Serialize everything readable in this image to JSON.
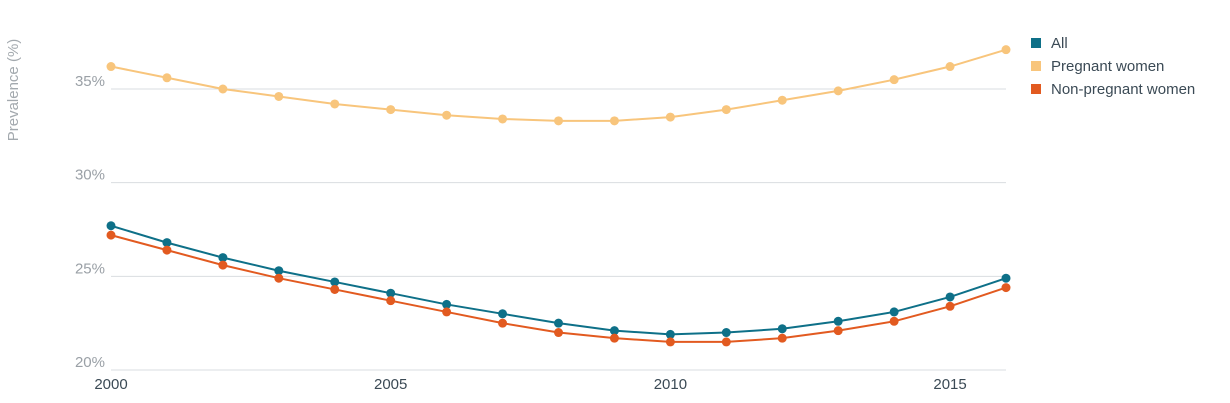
{
  "chart_data": {
    "type": "line",
    "ylabel": "Prevalence (%)",
    "x": [
      2000,
      2001,
      2002,
      2003,
      2004,
      2005,
      2006,
      2007,
      2008,
      2009,
      2010,
      2011,
      2012,
      2013,
      2014,
      2015,
      2016
    ],
    "x_ticks": [
      "2000",
      "2005",
      "2010",
      "2015"
    ],
    "x_tick_values": [
      2000,
      2005,
      2010,
      2015
    ],
    "y_ticks": [
      "20%",
      "25%",
      "30%",
      "35%"
    ],
    "y_tick_values": [
      20,
      25,
      30,
      35
    ],
    "ylim": [
      20,
      38
    ],
    "xlim": [
      2000,
      2016
    ],
    "grid": true,
    "legend_position": "top-right",
    "series": [
      {
        "name": "All",
        "color": "#0e7088",
        "values": [
          27.7,
          26.8,
          26.0,
          25.3,
          24.7,
          24.1,
          23.5,
          23.0,
          22.5,
          22.1,
          21.9,
          22.0,
          22.2,
          22.6,
          23.1,
          23.9,
          24.9
        ]
      },
      {
        "name": "Pregnant women",
        "color": "#f8c57c",
        "values": [
          36.2,
          35.6,
          35.0,
          34.6,
          34.2,
          33.9,
          33.6,
          33.4,
          33.3,
          33.3,
          33.5,
          33.9,
          34.4,
          34.9,
          35.5,
          36.2,
          37.1
        ]
      },
      {
        "name": "Non-pregnant women",
        "color": "#e25a20",
        "values": [
          27.2,
          26.4,
          25.6,
          24.9,
          24.3,
          23.7,
          23.1,
          22.5,
          22.0,
          21.7,
          21.5,
          21.5,
          21.7,
          22.1,
          22.6,
          23.4,
          24.4
        ]
      }
    ]
  }
}
